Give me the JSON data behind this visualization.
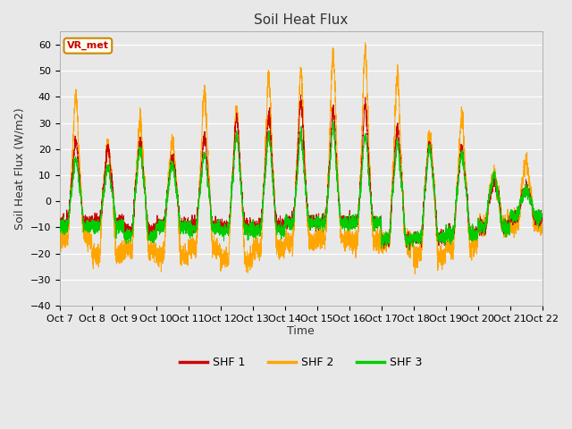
{
  "title": "Soil Heat Flux",
  "ylabel": "Soil Heat Flux (W/m2)",
  "xlabel": "Time",
  "ylim": [
    -40,
    65
  ],
  "yticks": [
    -40,
    -30,
    -20,
    -10,
    0,
    10,
    20,
    30,
    40,
    50,
    60
  ],
  "colors": {
    "SHF 1": "#cc0000",
    "SHF 2": "#ffa500",
    "SHF 3": "#00cc00"
  },
  "fig_bg": "#e8e8e8",
  "plot_bg": "#e8e8e8",
  "legend_label": "VR_met",
  "legend_box_color": "#cc8800",
  "legend_box_bg": "#fffff0",
  "n_days": 15,
  "xtick_labels": [
    "Oct 7",
    "Oct 8",
    "Oct 9",
    "Oct 10",
    "Oct 11",
    "Oct 12",
    "Oct 13",
    "Oct 14",
    "Oct 15",
    "Oct 16",
    "Oct 17",
    "Oct 18",
    "Oct 19",
    "Oct 20",
    "Oct 21",
    "Oct 22"
  ],
  "title_fontsize": 11,
  "label_fontsize": 9,
  "tick_fontsize": 8,
  "shf1_day_peaks": [
    23,
    21,
    22,
    17,
    25,
    32,
    33,
    38,
    35,
    37,
    28,
    22,
    20,
    8,
    5
  ],
  "shf1_night_troughs": [
    -12,
    -11,
    -16,
    -13,
    -13,
    -14,
    -13,
    -11,
    -11,
    -11,
    -21,
    -20,
    -17,
    -14,
    -9
  ],
  "shf2_day_peaks": [
    40,
    21,
    31,
    24,
    42,
    36,
    47,
    50,
    57,
    58,
    48,
    26,
    32,
    10,
    16
  ],
  "shf2_night_troughs": [
    -20,
    -29,
    -26,
    -30,
    -26,
    -32,
    -26,
    -22,
    -21,
    -22,
    -22,
    -30,
    -25,
    -13,
    -13
  ],
  "shf3_day_peaks": [
    16,
    13,
    20,
    14,
    18,
    25,
    25,
    25,
    28,
    25,
    22,
    20,
    18,
    10,
    4
  ],
  "shf3_night_troughs": [
    -14,
    -14,
    -19,
    -14,
    -15,
    -16,
    -16,
    -12,
    -12,
    -12,
    -21,
    -20,
    -18,
    -14,
    -8
  ]
}
